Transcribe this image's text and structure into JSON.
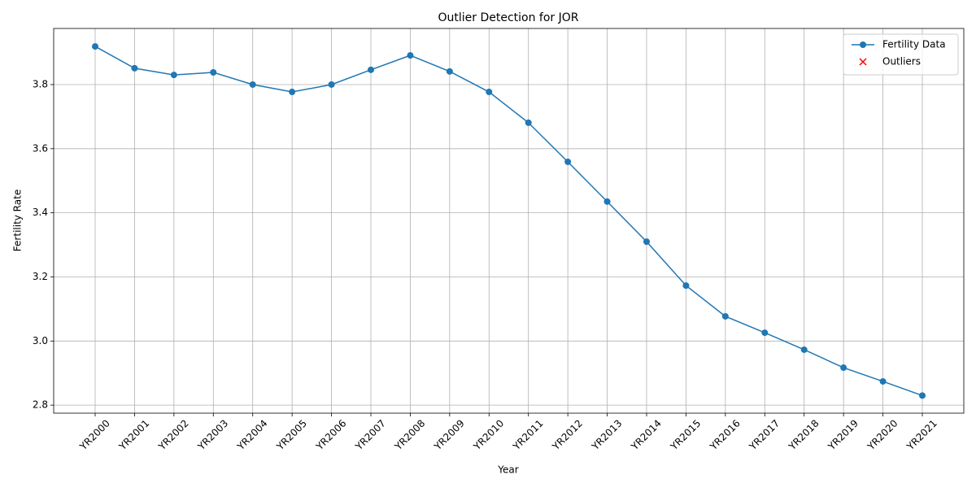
{
  "chart_data": {
    "type": "line",
    "title": "Outlier Detection for JOR",
    "xlabel": "Year",
    "ylabel": "Fertility Rate",
    "categories": [
      "YR2000",
      "YR2001",
      "YR2002",
      "YR2003",
      "YR2004",
      "YR2005",
      "YR2006",
      "YR2007",
      "YR2008",
      "YR2009",
      "YR2010",
      "YR2011",
      "YR2012",
      "YR2013",
      "YR2014",
      "YR2015",
      "YR2016",
      "YR2017",
      "YR2018",
      "YR2019",
      "YR2020",
      "YR2021"
    ],
    "series": [
      {
        "name": "Fertility Data",
        "color": "#1f77b4",
        "marker": "o",
        "values": [
          3.919,
          3.851,
          3.83,
          3.838,
          3.8,
          3.777,
          3.8,
          3.846,
          3.891,
          3.841,
          3.777,
          3.681,
          3.559,
          3.435,
          3.31,
          3.173,
          3.077,
          3.026,
          2.973,
          2.917,
          2.874,
          2.83
        ]
      },
      {
        "name": "Outliers",
        "color": "#ff0000",
        "marker": "x",
        "values": [
          null,
          null,
          null,
          null,
          null,
          null,
          null,
          null,
          null,
          null,
          null,
          null,
          null,
          null,
          null,
          null,
          null,
          null,
          null,
          null,
          null,
          null
        ]
      }
    ],
    "ylim": [
      2.775,
      3.975
    ],
    "yticks": [
      2.8,
      {
        "value": 3,
        "label": "3.0"
      },
      3.2,
      3.4,
      3.6,
      3.8
    ],
    "grid": true,
    "legend": "upper right"
  }
}
